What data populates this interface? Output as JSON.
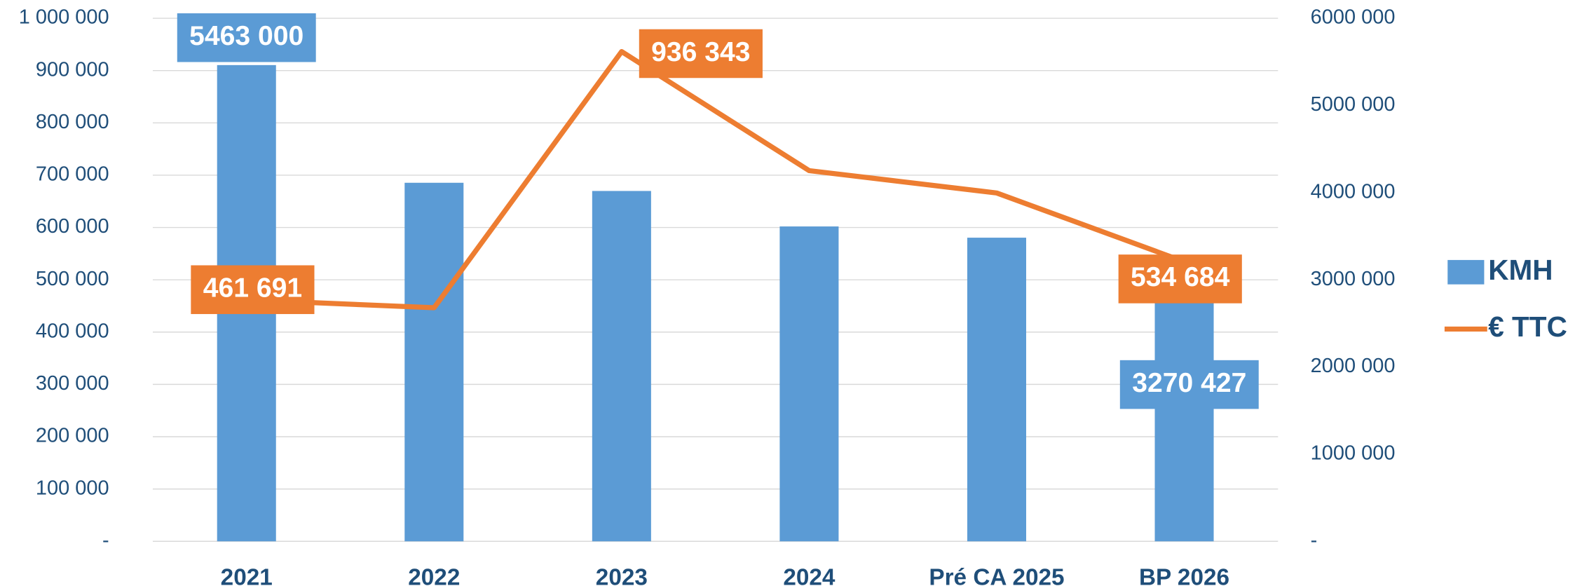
{
  "chart_data": {
    "type": "bar+line",
    "categories": [
      "2021",
      "2022",
      "2023",
      "2024",
      "Pré CA 2025",
      "BP 2026"
    ],
    "series": [
      {
        "name": "KMH",
        "type": "bar",
        "axis": "y2",
        "color": "#5b9bd5",
        "values": [
          5463000,
          4113000,
          4019000,
          3612000,
          3483000,
          3270427
        ],
        "value_labels": [
          "5463 000",
          null,
          null,
          null,
          null,
          "3270 427"
        ]
      },
      {
        "name": "€ TTC",
        "type": "line",
        "axis": "y",
        "color": "#ed7d31",
        "values": [
          461691,
          446600,
          936343,
          708700,
          666000,
          534684
        ],
        "value_labels": [
          "461 691",
          null,
          "936 343",
          null,
          null,
          "534 684"
        ]
      }
    ],
    "ylim": [
      0,
      1000000
    ],
    "yticks": [
      {
        "value": 0,
        "label": "-"
      },
      {
        "value": 100000,
        "label": "100 000"
      },
      {
        "value": 200000,
        "label": "200 000"
      },
      {
        "value": 300000,
        "label": "300 000"
      },
      {
        "value": 400000,
        "label": "400 000"
      },
      {
        "value": 500000,
        "label": "500 000"
      },
      {
        "value": 600000,
        "label": "600 000"
      },
      {
        "value": 700000,
        "label": "700 000"
      },
      {
        "value": 800000,
        "label": "800 000"
      },
      {
        "value": 900000,
        "label": "900 000"
      },
      {
        "value": 1000000,
        "label": "1 000 000"
      }
    ],
    "y2lim": [
      0,
      6000000
    ],
    "y2ticks": [
      {
        "value": 0,
        "label": "-"
      },
      {
        "value": 1000000,
        "label": "1000 000"
      },
      {
        "value": 2000000,
        "label": "2000 000"
      },
      {
        "value": 3000000,
        "label": "3000 000"
      },
      {
        "value": 4000000,
        "label": "4000 000"
      },
      {
        "value": 5000000,
        "label": "5000 000"
      },
      {
        "value": 6000000,
        "label": "6000 000"
      }
    ],
    "grid": true,
    "legend": "right"
  }
}
